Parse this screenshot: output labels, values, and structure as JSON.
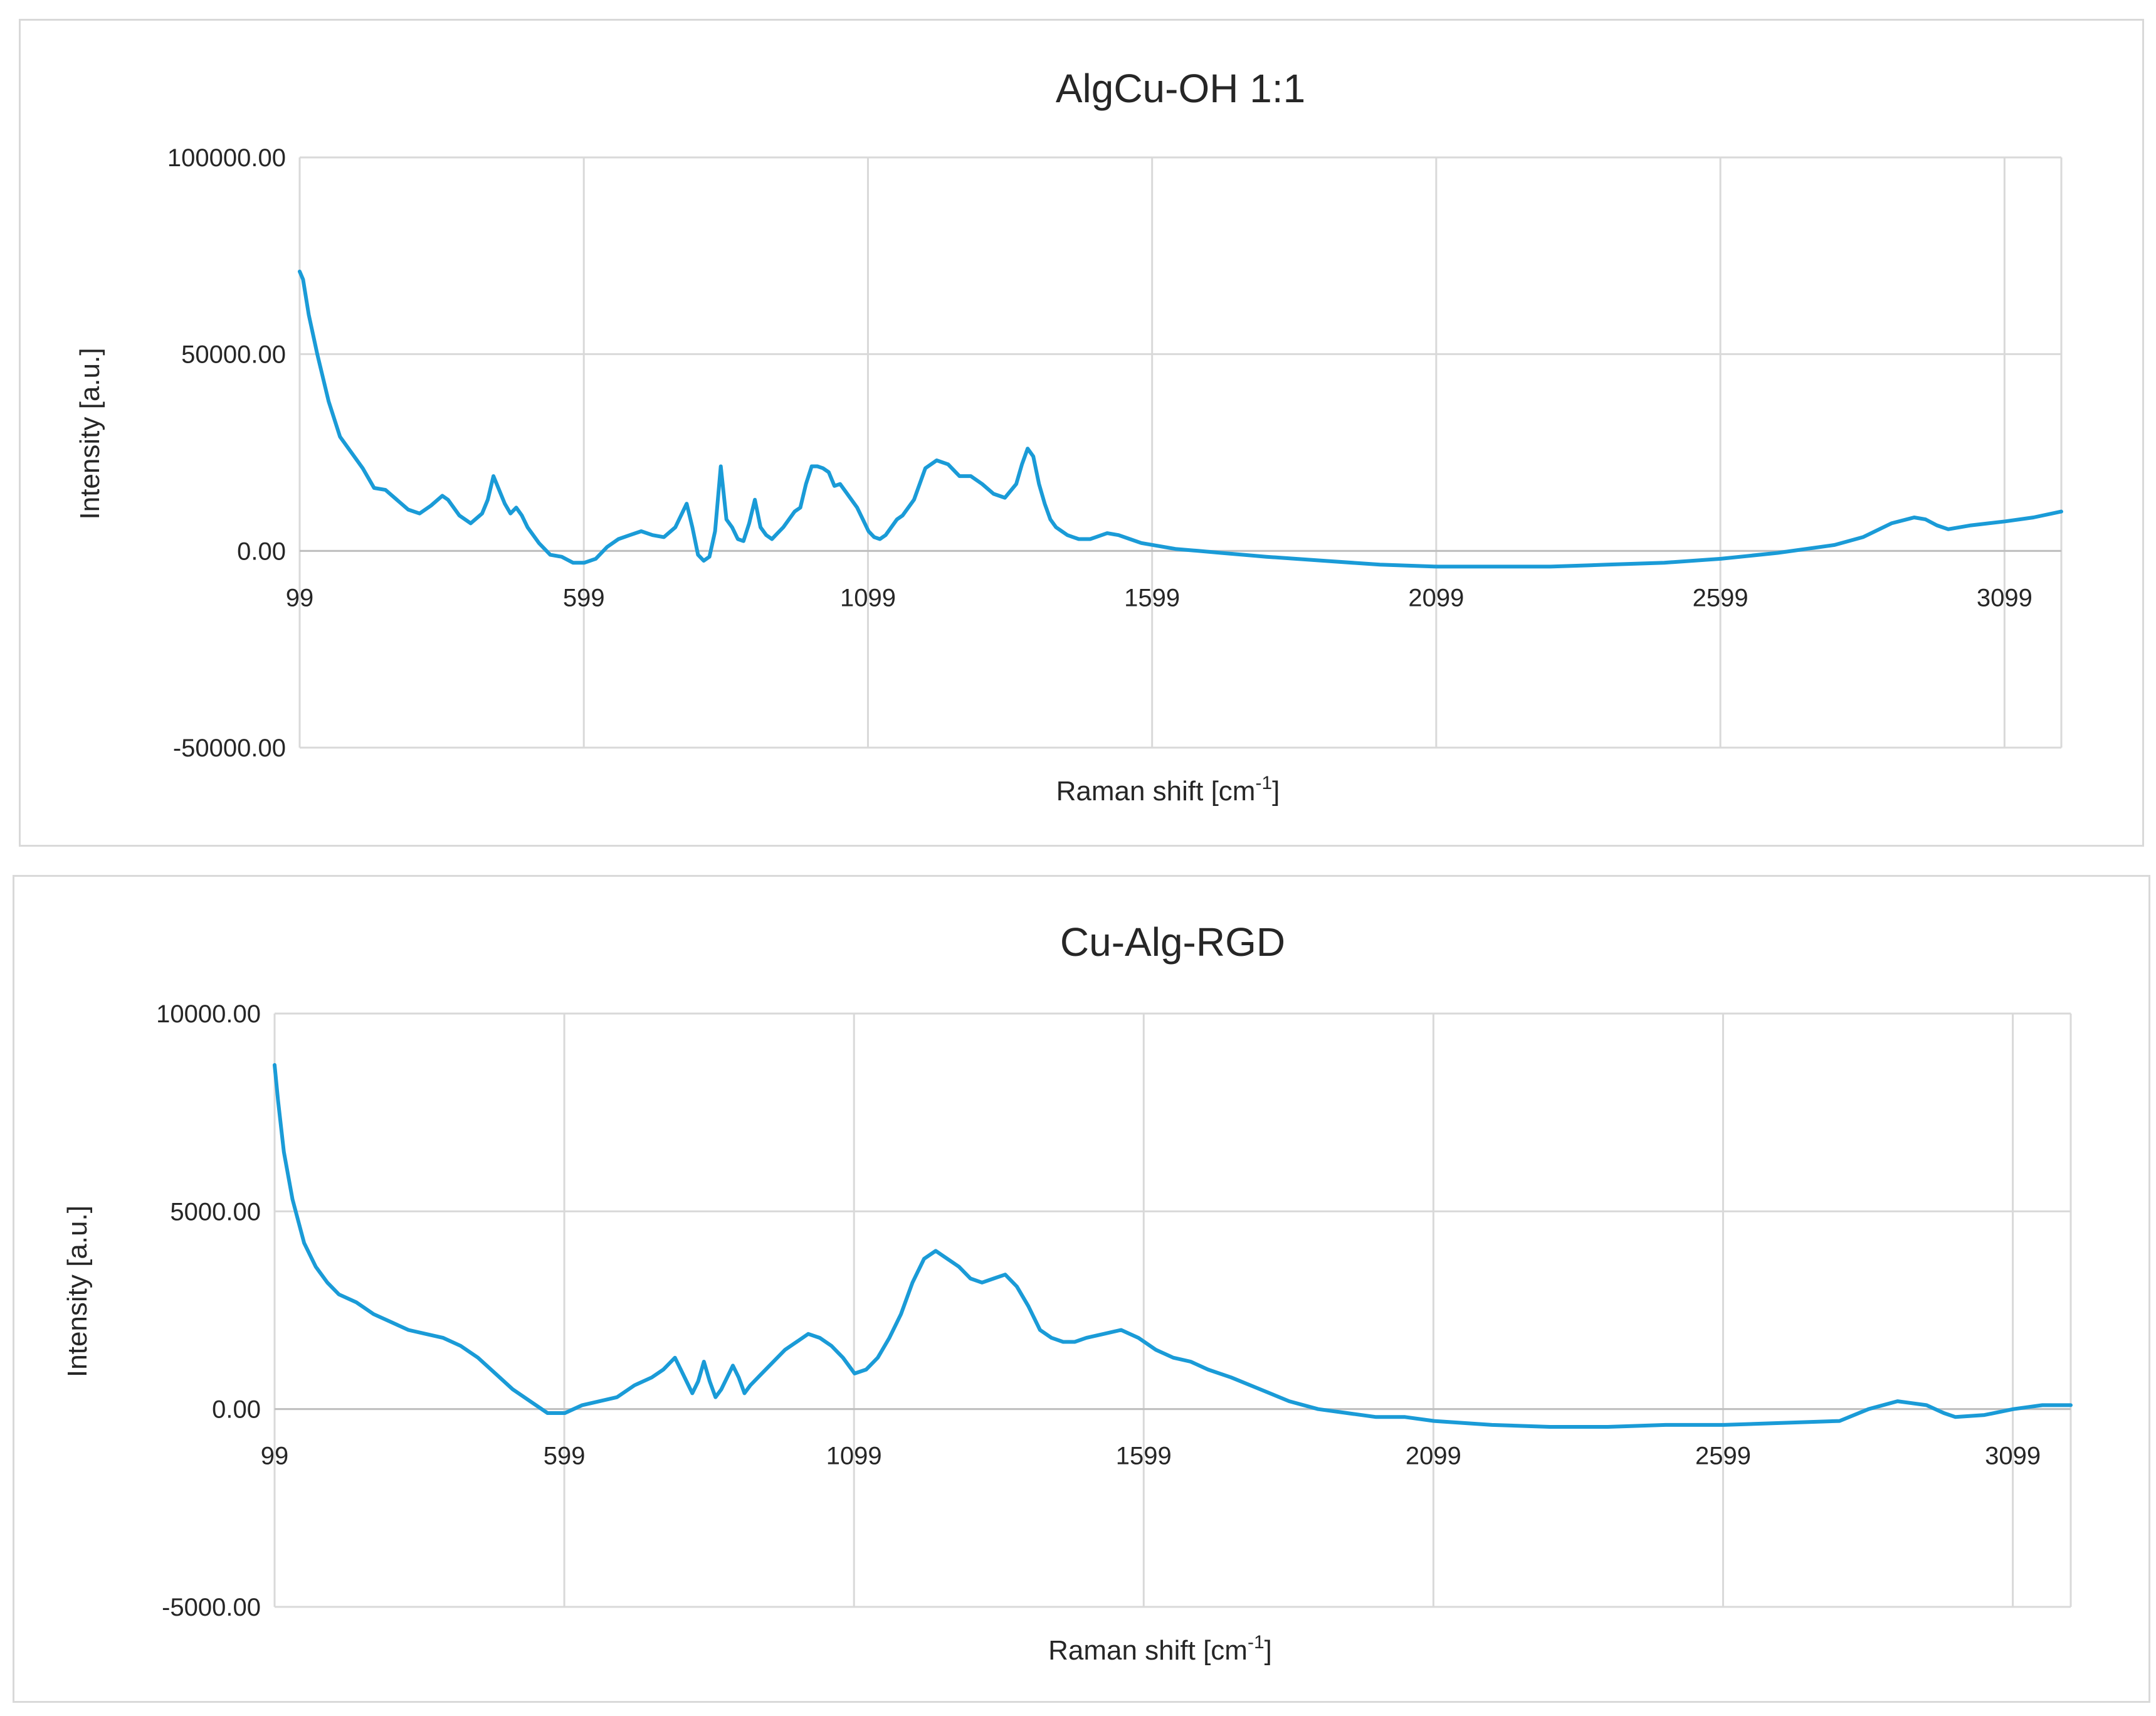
{
  "chart_data": [
    {
      "type": "line",
      "title": "AlgCu-OH 1:1",
      "xlabel": "Raman shift [cm",
      "xlabel_sup": "-1",
      "xlabel_end": "]",
      "ylabel": "Intensity [a.u.]",
      "xlim": [
        99,
        3199
      ],
      "ylim": [
        -50000,
        100000
      ],
      "xticks": [
        "99",
        "599",
        "1099",
        "1599",
        "2099",
        "2599",
        "3099"
      ],
      "yticks": [
        "100000.00",
        "50000.00",
        "0.00",
        "-50000.00"
      ],
      "ytick_values": [
        100000,
        50000,
        0,
        -50000
      ],
      "xtick_values": [
        99,
        599,
        1099,
        1599,
        2099,
        2599,
        3099
      ],
      "grid": true,
      "color": "#1a9bd7",
      "series": [
        {
          "x": [
            99,
            105,
            115,
            130,
            150,
            170,
            190,
            210,
            230,
            250,
            270,
            290,
            310,
            330,
            350,
            360,
            380,
            400,
            420,
            430,
            440,
            460,
            470,
            480,
            490,
            500,
            520,
            540,
            560,
            580,
            600,
            620,
            640,
            660,
            680,
            700,
            720,
            740,
            760,
            780,
            790,
            800,
            810,
            820,
            830,
            840,
            850,
            860,
            870,
            880,
            890,
            900,
            910,
            920,
            930,
            940,
            950,
            960,
            970,
            980,
            990,
            1000,
            1010,
            1020,
            1030,
            1040,
            1050,
            1060,
            1080,
            1090,
            1100,
            1110,
            1120,
            1130,
            1140,
            1150,
            1160,
            1180,
            1200,
            1220,
            1240,
            1260,
            1280,
            1300,
            1320,
            1340,
            1360,
            1370,
            1380,
            1390,
            1400,
            1410,
            1420,
            1430,
            1440,
            1450,
            1460,
            1470,
            1480,
            1490,
            1500,
            1520,
            1540,
            1560,
            1580,
            1600,
            1620,
            1640,
            1680,
            1720,
            1800,
            1900,
            2000,
            2100,
            2200,
            2300,
            2400,
            2500,
            2600,
            2700,
            2800,
            2850,
            2900,
            2940,
            2960,
            2980,
            3000,
            3040,
            3100,
            3150,
            3199
          ],
          "y": [
            71000,
            69000,
            60000,
            50000,
            38000,
            29000,
            25000,
            21000,
            16000,
            15500,
            13000,
            10500,
            9500,
            11500,
            14000,
            13000,
            9000,
            7000,
            9500,
            13000,
            19000,
            12000,
            9500,
            11000,
            9000,
            6000,
            2000,
            -1000,
            -1500,
            -3000,
            -3000,
            -2000,
            1000,
            3000,
            4000,
            5000,
            4000,
            3500,
            6000,
            12000,
            6000,
            -1000,
            -2500,
            -1500,
            5000,
            21500,
            8000,
            6000,
            3000,
            2500,
            7000,
            13000,
            6000,
            4000,
            3000,
            4500,
            6000,
            8000,
            10000,
            11000,
            17000,
            21500,
            21500,
            21000,
            20000,
            16500,
            17000,
            15000,
            11000,
            8000,
            5000,
            3500,
            3000,
            4000,
            6000,
            8000,
            9000,
            13000,
            21000,
            23000,
            22000,
            19000,
            19000,
            17000,
            14500,
            13500,
            17000,
            22000,
            26000,
            24000,
            17000,
            12000,
            8000,
            6000,
            5000,
            4000,
            3500,
            3000,
            3000,
            3000,
            3500,
            4500,
            4000,
            3000,
            2000,
            1500,
            1000,
            500,
            0,
            -500,
            -1500,
            -2500,
            -3500,
            -4000,
            -4000,
            -4000,
            -3500,
            -3000,
            -2000,
            -500,
            1500,
            3500,
            7000,
            8500,
            8000,
            6500,
            5500,
            6500,
            7500,
            8500,
            10000
          ]
        }
      ]
    },
    {
      "type": "line",
      "title": "Cu-Alg-RGD",
      "xlabel": "Raman shift [cm",
      "xlabel_sup": "-1",
      "xlabel_end": "]",
      "ylabel": "Intensity [a.u.]",
      "xlim": [
        99,
        3199
      ],
      "ylim": [
        -5000,
        10000
      ],
      "xticks": [
        "99",
        "599",
        "1099",
        "1599",
        "2099",
        "2599",
        "3099"
      ],
      "yticks": [
        "10000.00",
        "5000.00",
        "0.00",
        "-5000.00"
      ],
      "ytick_values": [
        10000,
        5000,
        0,
        -5000
      ],
      "xtick_values": [
        99,
        599,
        1099,
        1599,
        2099,
        2599,
        3099
      ],
      "grid": true,
      "color": "#1a9bd7",
      "series": [
        {
          "x": [
            99,
            105,
            115,
            130,
            150,
            170,
            190,
            210,
            240,
            270,
            300,
            330,
            360,
            390,
            420,
            450,
            480,
            510,
            540,
            570,
            600,
            630,
            660,
            690,
            720,
            750,
            770,
            790,
            800,
            810,
            820,
            830,
            840,
            850,
            860,
            870,
            880,
            890,
            900,
            910,
            920,
            940,
            960,
            980,
            1000,
            1020,
            1040,
            1060,
            1080,
            1090,
            1100,
            1120,
            1140,
            1160,
            1180,
            1200,
            1220,
            1240,
            1260,
            1280,
            1300,
            1320,
            1340,
            1360,
            1380,
            1400,
            1420,
            1440,
            1460,
            1480,
            1500,
            1530,
            1560,
            1590,
            1620,
            1650,
            1680,
            1710,
            1750,
            1800,
            1850,
            1900,
            1950,
            2000,
            2050,
            2100,
            2200,
            2300,
            2400,
            2500,
            2600,
            2700,
            2800,
            2850,
            2900,
            2950,
            2980,
            3000,
            3050,
            3100,
            3150,
            3199
          ],
          "y": [
            8700,
            7800,
            6500,
            5300,
            4200,
            3600,
            3200,
            2900,
            2700,
            2400,
            2200,
            2000,
            1900,
            1800,
            1600,
            1300,
            900,
            500,
            200,
            -100,
            -100,
            100,
            200,
            300,
            600,
            800,
            1000,
            1300,
            1000,
            700,
            400,
            700,
            1200,
            700,
            300,
            500,
            800,
            1100,
            800,
            400,
            600,
            900,
            1200,
            1500,
            1700,
            1900,
            1800,
            1600,
            1300,
            1100,
            900,
            1000,
            1300,
            1800,
            2400,
            3200,
            3800,
            4000,
            3800,
            3600,
            3300,
            3200,
            3300,
            3400,
            3100,
            2600,
            2000,
            1800,
            1700,
            1700,
            1800,
            1900,
            2000,
            1800,
            1500,
            1300,
            1200,
            1000,
            800,
            500,
            200,
            0,
            -100,
            -200,
            -200,
            -300,
            -400,
            -450,
            -450,
            -400,
            -400,
            -350,
            -300,
            0,
            200,
            100,
            -100,
            -200,
            -150,
            0,
            100,
            100
          ]
        }
      ]
    }
  ]
}
